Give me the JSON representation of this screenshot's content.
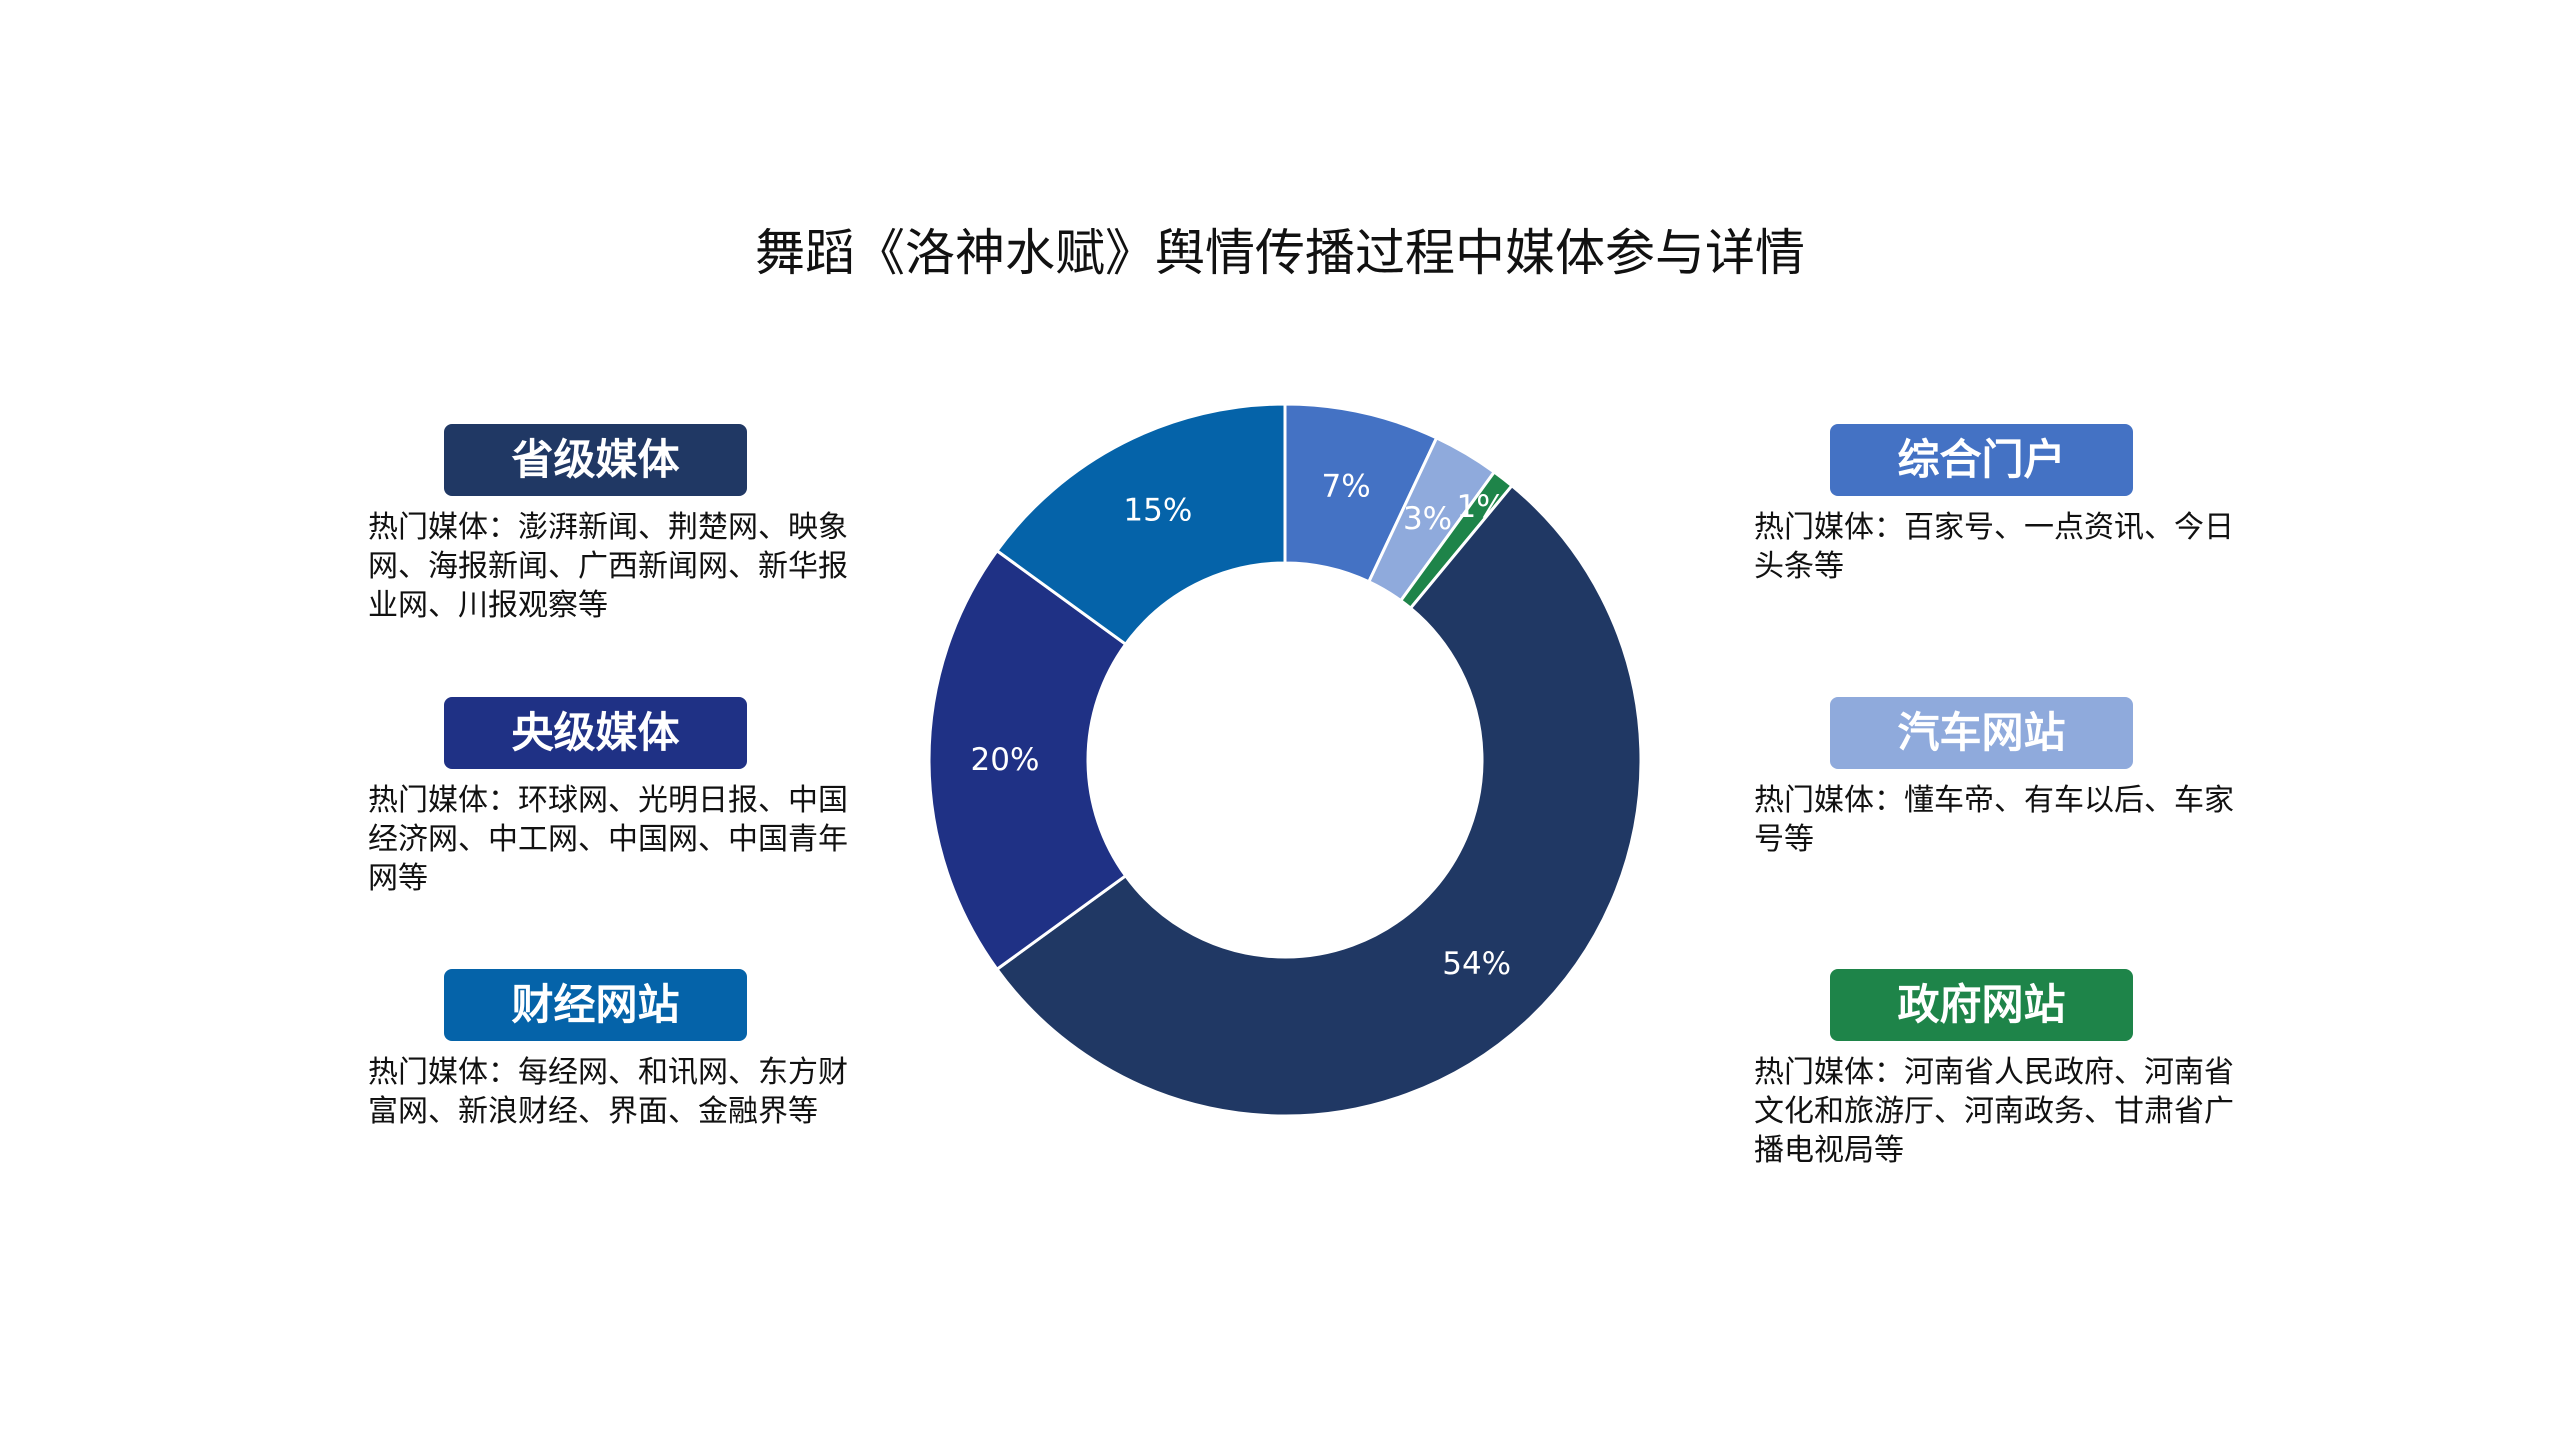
{
  "title": "舞蹈《洛神水赋》舆情传播过程中媒体参与详情",
  "chart_data": {
    "type": "pie",
    "title": "舞蹈《洛神水赋》舆情传播过程中媒体参与详情",
    "series": [
      {
        "name": "综合门户",
        "value": 7,
        "label": "7%",
        "color": "#4472C4"
      },
      {
        "name": "汽车网站",
        "value": 3,
        "label": "3%",
        "color": "#8FAADC"
      },
      {
        "name": "政府网站",
        "value": 1,
        "label": "1%",
        "color": "#1E8449"
      },
      {
        "name": "省级媒体",
        "value": 54,
        "label": "54%",
        "color": "#203864"
      },
      {
        "name": "央级媒体",
        "value": 20,
        "label": "20%",
        "color": "#1F3185"
      },
      {
        "name": "财经网站",
        "value": 15,
        "label": "15%",
        "color": "#0563A9"
      }
    ]
  },
  "cards": {
    "provincial": {
      "label": "省级媒体",
      "color": "#203864",
      "desc": "热门媒体：澎湃新闻、荆楚网、映象网、海报新闻、广西新闻网、新华报业网、川报观察等"
    },
    "central": {
      "label": "央级媒体",
      "color": "#1F3185",
      "desc": "热门媒体：环球网、光明日报、中国经济网、中工网、中国网、中国青年网等"
    },
    "finance": {
      "label": "财经网站",
      "color": "#0563A9",
      "desc": "热门媒体：每经网、和讯网、东方财富网、新浪财经、界面、金融界等"
    },
    "portal": {
      "label": "综合门户",
      "color": "#4472C4",
      "desc": "热门媒体：百家号、一点资讯、今日头条等"
    },
    "auto": {
      "label": "汽车网站",
      "color": "#8FAADC",
      "desc": "热门媒体：懂车帝、有车以后、车家号等"
    },
    "gov": {
      "label": "政府网站",
      "color": "#1E8449",
      "desc": "热门媒体：河南省人民政府、河南省文化和旅游厅、河南政务、甘肃省广播电视局等"
    }
  }
}
